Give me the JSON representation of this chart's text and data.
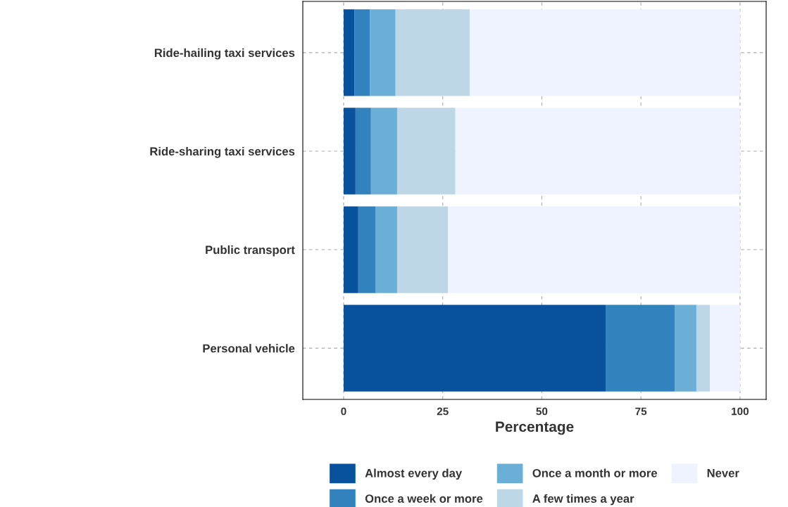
{
  "chart_data": {
    "type": "bar",
    "orientation": "horizontal",
    "stacked": true,
    "categories": [
      "Ride-hailing taxi services",
      "Ride-sharing taxi services",
      "Public transport",
      "Personal vehicle"
    ],
    "series": [
      {
        "name": "Almost every day",
        "color": "#08519c",
        "values": [
          2.7,
          3.0,
          3.7,
          66.1
        ]
      },
      {
        "name": "Once a week or more",
        "color": "#3182bd",
        "values": [
          3.9,
          3.9,
          4.3,
          17.4
        ]
      },
      {
        "name": "Once a month or more",
        "color": "#6baed6",
        "values": [
          6.5,
          6.6,
          5.5,
          5.5
        ]
      },
      {
        "name": "A few times a year",
        "color": "#bdd7e7",
        "values": [
          18.7,
          14.7,
          12.8,
          3.4
        ]
      },
      {
        "name": "Never",
        "color": "#eff3ff",
        "values": [
          68.2,
          71.8,
          73.7,
          7.6
        ]
      }
    ],
    "xlabel": "Percentage",
    "xlim": [
      -10.3,
      106.6
    ],
    "xticks": [
      0,
      25,
      50,
      75,
      100
    ],
    "grid": true,
    "legend": "bottom"
  }
}
